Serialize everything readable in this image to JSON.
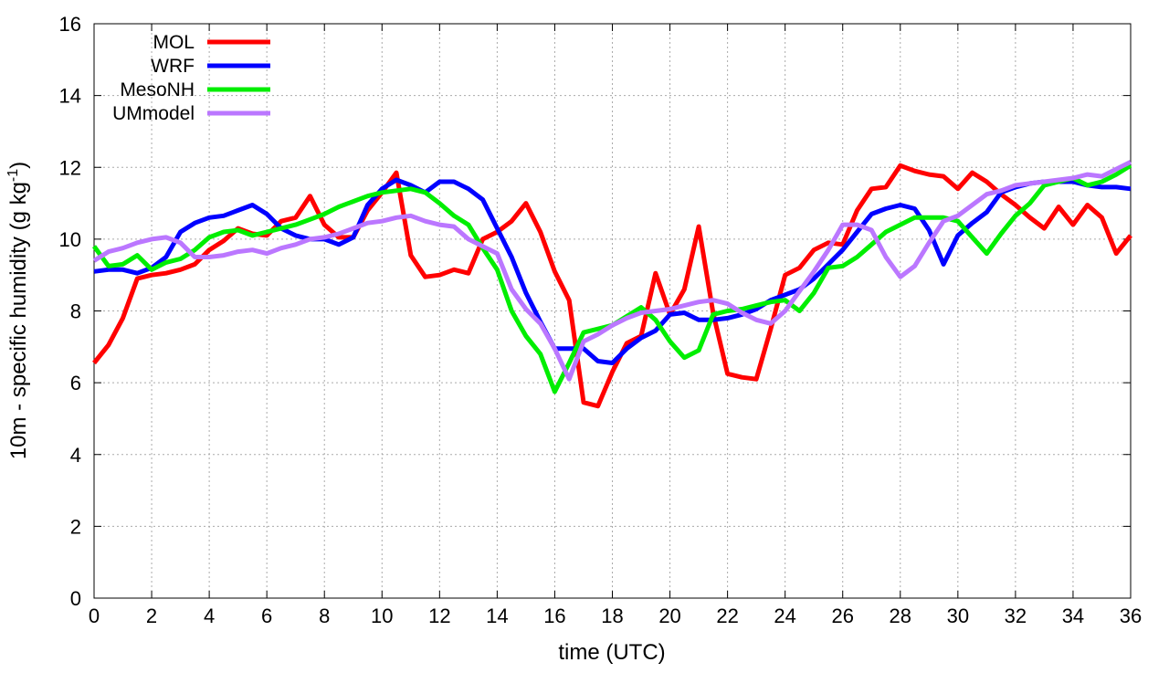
{
  "chart_data": {
    "type": "line",
    "title": "",
    "xlabel": "time (UTC)",
    "ylabel_main": "10m - specific humidity (g kg",
    "ylabel_sup": "-1",
    "ylabel_end": ")",
    "xlim": [
      0,
      36
    ],
    "ylim": [
      0,
      16
    ],
    "xticks": [
      0,
      2,
      4,
      6,
      8,
      10,
      12,
      14,
      16,
      18,
      20,
      22,
      24,
      26,
      28,
      30,
      32,
      34,
      36
    ],
    "yticks": [
      0,
      2,
      4,
      6,
      8,
      10,
      12,
      14,
      16
    ],
    "grid": true,
    "legend_position": "top-left",
    "series": [
      {
        "name": "MOL",
        "color": "#ff0000",
        "x": [
          0,
          0.5,
          1,
          1.5,
          2,
          2.5,
          3,
          3.5,
          4,
          4.5,
          5,
          5.5,
          6,
          6.5,
          7,
          7.5,
          8,
          8.5,
          9,
          9.5,
          10,
          10.5,
          11,
          11.5,
          12,
          12.5,
          13,
          13.5,
          14,
          14.5,
          15,
          15.5,
          16,
          16.5,
          17,
          17.5,
          18,
          18.5,
          19,
          19.5,
          20,
          20.5,
          21,
          21.5,
          22,
          22.5,
          23,
          23.5,
          24,
          24.5,
          25,
          25.5,
          26,
          26.5,
          27,
          27.5,
          28,
          28.5,
          29,
          29.5,
          30,
          30.5,
          31,
          31.5,
          32,
          32.5,
          33,
          33.5,
          34,
          34.5,
          35,
          35.5,
          36
        ],
        "y": [
          6.55,
          7.05,
          7.8,
          8.9,
          9.0,
          9.05,
          9.15,
          9.3,
          9.7,
          9.95,
          10.3,
          10.15,
          10.1,
          10.5,
          10.6,
          11.2,
          10.4,
          10.05,
          10.05,
          10.8,
          11.3,
          11.85,
          9.55,
          8.95,
          9.0,
          9.15,
          9.05,
          10.0,
          10.2,
          10.5,
          11.0,
          10.2,
          9.1,
          8.3,
          5.45,
          5.35,
          6.3,
          7.1,
          7.3,
          9.05,
          7.9,
          8.6,
          10.35,
          7.95,
          6.25,
          6.15,
          6.1,
          7.5,
          9.0,
          9.2,
          9.7,
          9.9,
          9.85,
          10.8,
          11.4,
          11.45,
          12.05,
          11.9,
          11.8,
          11.75,
          11.4,
          11.85,
          11.6,
          11.25,
          10.95,
          10.6,
          10.3,
          10.9,
          10.4,
          10.95,
          10.6,
          9.6,
          10.1
        ]
      },
      {
        "name": "WRF",
        "color": "#0000ff",
        "x": [
          0,
          0.5,
          1,
          1.5,
          2,
          2.5,
          3,
          3.5,
          4,
          4.5,
          5,
          5.5,
          6,
          6.5,
          7,
          7.5,
          8,
          8.5,
          9,
          9.5,
          10,
          10.5,
          11,
          11.5,
          12,
          12.5,
          13,
          13.5,
          14,
          14.5,
          15,
          15.5,
          16,
          16.5,
          17,
          17.5,
          18,
          18.5,
          19,
          19.5,
          20,
          20.5,
          21,
          21.5,
          22,
          22.5,
          23,
          23.5,
          24,
          24.5,
          25,
          25.5,
          26,
          26.5,
          27,
          27.5,
          28,
          28.5,
          29,
          29.5,
          30,
          30.5,
          31,
          31.5,
          32,
          32.5,
          33,
          33.5,
          34,
          34.5,
          35,
          35.5,
          36
        ],
        "y": [
          9.1,
          9.15,
          9.15,
          9.05,
          9.2,
          9.5,
          10.2,
          10.45,
          10.6,
          10.65,
          10.8,
          10.95,
          10.7,
          10.3,
          10.1,
          10.0,
          10.0,
          9.85,
          10.05,
          10.95,
          11.4,
          11.65,
          11.5,
          11.3,
          11.6,
          11.6,
          11.4,
          11.1,
          10.3,
          9.5,
          8.5,
          7.7,
          6.95,
          6.95,
          6.95,
          6.6,
          6.55,
          6.95,
          7.25,
          7.45,
          7.9,
          7.95,
          7.75,
          7.75,
          7.8,
          7.9,
          8.05,
          8.3,
          8.45,
          8.6,
          8.9,
          9.3,
          9.7,
          10.2,
          10.7,
          10.85,
          10.95,
          10.85,
          10.25,
          9.3,
          10.1,
          10.45,
          10.75,
          11.3,
          11.45,
          11.55,
          11.6,
          11.6,
          11.6,
          11.5,
          11.45,
          11.45,
          11.4
        ]
      },
      {
        "name": "MesoNH",
        "color": "#00ee00",
        "x": [
          0,
          0.5,
          1,
          1.5,
          2,
          2.5,
          3,
          3.5,
          4,
          4.5,
          5,
          5.5,
          6,
          6.5,
          7,
          7.5,
          8,
          8.5,
          9,
          9.5,
          10,
          10.5,
          11,
          11.5,
          12,
          12.5,
          13,
          13.5,
          14,
          14.5,
          15,
          15.5,
          16,
          16.5,
          17,
          17.5,
          18,
          18.5,
          19,
          19.5,
          20,
          20.5,
          21,
          21.5,
          22,
          22.5,
          23,
          23.5,
          24,
          24.5,
          25,
          25.5,
          26,
          26.5,
          27,
          27.5,
          28,
          28.5,
          29,
          29.5,
          30,
          30.5,
          31,
          31.5,
          32,
          32.5,
          33,
          33.5,
          34,
          34.5,
          35,
          35.5,
          36
        ],
        "y": [
          9.8,
          9.25,
          9.3,
          9.55,
          9.15,
          9.35,
          9.45,
          9.7,
          10.05,
          10.2,
          10.25,
          10.1,
          10.2,
          10.3,
          10.4,
          10.55,
          10.7,
          10.9,
          11.05,
          11.2,
          11.3,
          11.35,
          11.4,
          11.3,
          11.0,
          10.65,
          10.4,
          9.75,
          9.15,
          8.0,
          7.3,
          6.8,
          5.75,
          6.55,
          7.4,
          7.5,
          7.6,
          7.85,
          8.1,
          7.75,
          7.15,
          6.7,
          6.9,
          7.9,
          8.0,
          8.05,
          8.15,
          8.25,
          8.3,
          8.0,
          8.5,
          9.2,
          9.25,
          9.5,
          9.85,
          10.2,
          10.4,
          10.6,
          10.6,
          10.6,
          10.5,
          10.05,
          9.6,
          10.15,
          10.65,
          11.0,
          11.5,
          11.6,
          11.7,
          11.5,
          11.6,
          11.8,
          12.05
        ]
      },
      {
        "name": "UMmodel",
        "color": "#bb77ff",
        "x": [
          0,
          0.5,
          1,
          1.5,
          2,
          2.5,
          3,
          3.5,
          4,
          4.5,
          5,
          5.5,
          6,
          6.5,
          7,
          7.5,
          8,
          8.5,
          9,
          9.5,
          10,
          10.5,
          11,
          11.5,
          12,
          12.5,
          13,
          13.5,
          14,
          14.5,
          15,
          15.5,
          16,
          16.5,
          17,
          17.5,
          18,
          18.5,
          19,
          19.5,
          20,
          20.5,
          21,
          21.5,
          22,
          22.5,
          23,
          23.5,
          24,
          24.5,
          25,
          25.5,
          26,
          26.5,
          27,
          27.5,
          28,
          28.5,
          29,
          29.5,
          30,
          30.5,
          31,
          31.5,
          32,
          32.5,
          33,
          33.5,
          34,
          34.5,
          35,
          35.5,
          36
        ],
        "y": [
          9.4,
          9.65,
          9.75,
          9.9,
          10.0,
          10.05,
          9.9,
          9.5,
          9.5,
          9.55,
          9.65,
          9.7,
          9.6,
          9.75,
          9.85,
          10.0,
          10.05,
          10.15,
          10.3,
          10.45,
          10.5,
          10.6,
          10.65,
          10.5,
          10.4,
          10.35,
          10.0,
          9.8,
          9.6,
          8.6,
          8.05,
          7.65,
          6.95,
          6.1,
          7.15,
          7.35,
          7.6,
          7.8,
          7.95,
          8.0,
          8.05,
          8.15,
          8.25,
          8.3,
          8.2,
          7.95,
          7.75,
          7.65,
          8.0,
          8.55,
          9.1,
          9.7,
          10.4,
          10.4,
          10.25,
          9.5,
          8.95,
          9.25,
          9.9,
          10.5,
          10.65,
          10.95,
          11.25,
          11.35,
          11.5,
          11.55,
          11.6,
          11.65,
          11.7,
          11.8,
          11.75,
          11.95,
          12.15
        ]
      }
    ]
  }
}
